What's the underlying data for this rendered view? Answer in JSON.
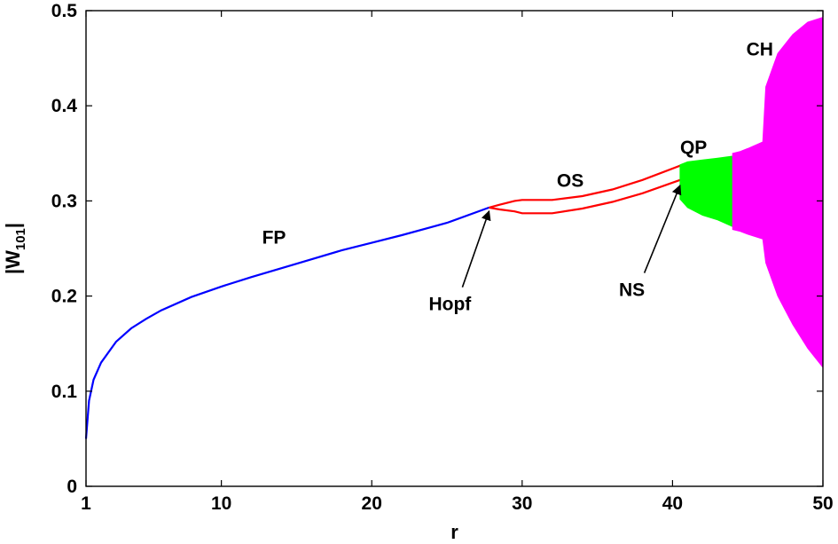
{
  "chart_data": {
    "type": "line",
    "title": "",
    "xlabel": "r",
    "ylabel_main": "|W",
    "ylabel_sub": "101",
    "ylabel_end": "|",
    "xlim": [
      1,
      50
    ],
    "ylim": [
      0,
      0.5
    ],
    "x_ticks": [
      1,
      10,
      20,
      30,
      40,
      50
    ],
    "y_ticks": [
      0,
      0.1,
      0.2,
      0.3,
      0.4,
      0.5
    ],
    "x_tick_labels": [
      "1",
      "10",
      "20",
      "30",
      "40",
      "50"
    ],
    "y_tick_labels": [
      "0",
      "0.1",
      "0.2",
      "0.3",
      "0.4",
      "0.5"
    ],
    "grid": false,
    "colors": {
      "fixed_point": "#0000ff",
      "oscillation": "#ff0000",
      "quasi_periodic": "#00ff00",
      "chaos": "#ff00ff"
    },
    "series": [
      {
        "name": "FP",
        "kind": "line",
        "x": [
          1.0,
          1.2,
          1.5,
          2,
          3,
          4,
          5,
          6,
          8,
          10,
          12,
          15,
          18,
          20,
          22,
          25,
          27.8
        ],
        "y": [
          0.05,
          0.09,
          0.112,
          0.13,
          0.152,
          0.166,
          0.176,
          0.185,
          0.199,
          0.21,
          0.22,
          0.234,
          0.248,
          0.256,
          0.264,
          0.277,
          0.293
        ]
      },
      {
        "name": "OS",
        "kind": "band-lines",
        "x": [
          27.8,
          28.5,
          29.5,
          30,
          32,
          34,
          36,
          38,
          40.5
        ],
        "y_upper": [
          0.293,
          0.296,
          0.3,
          0.301,
          0.301,
          0.305,
          0.312,
          0.322,
          0.337
        ],
        "y_lower": [
          0.293,
          0.291,
          0.289,
          0.287,
          0.287,
          0.292,
          0.299,
          0.308,
          0.322
        ]
      },
      {
        "name": "QP",
        "kind": "band",
        "x": [
          40.5,
          41,
          42,
          43,
          44
        ],
        "y_upper": [
          0.338,
          0.341,
          0.343,
          0.345,
          0.347
        ],
        "y_lower": [
          0.302,
          0.293,
          0.285,
          0.28,
          0.273
        ]
      },
      {
        "name": "CH",
        "kind": "band",
        "x": [
          44,
          44.5,
          45,
          46,
          46.2,
          47,
          48,
          49,
          50
        ],
        "y_upper": [
          0.35,
          0.352,
          0.355,
          0.362,
          0.42,
          0.455,
          0.475,
          0.488,
          0.493
        ],
        "y_lower": [
          0.27,
          0.268,
          0.265,
          0.26,
          0.235,
          0.2,
          0.17,
          0.145,
          0.125
        ]
      }
    ],
    "annotations": [
      {
        "text": "FP",
        "x": 13.5,
        "y": 0.255
      },
      {
        "text": "OS",
        "x": 33.2,
        "y": 0.315
      },
      {
        "text": "QP",
        "x": 41.4,
        "y": 0.35
      },
      {
        "text": "CH",
        "x": 45.8,
        "y": 0.453
      },
      {
        "text": "Hopf",
        "x": 25.2,
        "y": 0.185,
        "arrow_to": [
          27.8,
          0.293
        ]
      },
      {
        "text": "NS",
        "x": 37.3,
        "y": 0.2,
        "arrow_to": [
          40.5,
          0.32
        ]
      }
    ]
  }
}
